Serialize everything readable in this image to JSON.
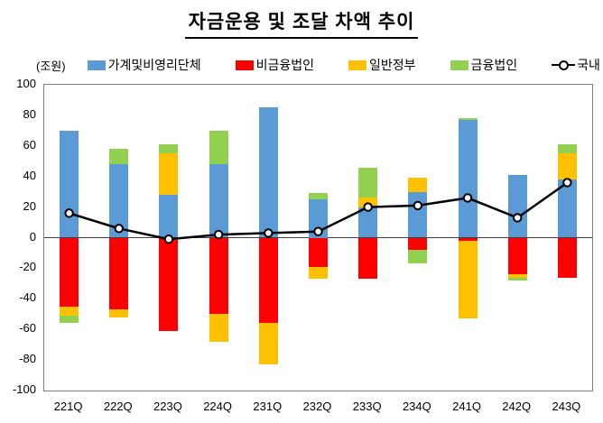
{
  "title": "자금운용 및 조달 차액 추이",
  "unit_label": "(조원)",
  "colors": {
    "blue": "#5B9BD5",
    "red": "#FF0000",
    "yellow": "#FFC000",
    "green": "#92D050",
    "line": "#000000",
    "marker_fill": "#FFFFFF",
    "plot_border": "#7F7F7F",
    "zero_line": "#404040"
  },
  "chart_data": {
    "type": "bar",
    "stacked": true,
    "title": "자금운용 및 조달 차액 추이",
    "unit": "(조원)",
    "categories": [
      "221Q",
      "222Q",
      "223Q",
      "224Q",
      "231Q",
      "232Q",
      "233Q",
      "234Q",
      "241Q",
      "242Q",
      "243Q"
    ],
    "series": [
      {
        "name": "가계및비영리단체",
        "color_key": "blue",
        "values": [
          70,
          48,
          28,
          48,
          85,
          25,
          20,
          30,
          77,
          41,
          38
        ]
      },
      {
        "name": "비금융법인",
        "color_key": "red",
        "values": [
          -45,
          -47,
          -61,
          -50,
          -56,
          -19,
          -27,
          -8,
          -2,
          -24,
          -26
        ]
      },
      {
        "name": "일반정부",
        "color_key": "yellow",
        "values": [
          -6,
          -5,
          27,
          -18,
          -27,
          -8,
          6,
          9,
          -51,
          -2,
          17
        ]
      },
      {
        "name": "금융법인",
        "color_key": "green",
        "values": [
          -5,
          10,
          6,
          22,
          0,
          4,
          20,
          -9,
          1,
          -2,
          6
        ]
      }
    ],
    "line_series": {
      "name": "국내",
      "marker": "open-circle",
      "values": [
        16,
        6,
        -1,
        2,
        3,
        4,
        20,
        21,
        26,
        13,
        36
      ]
    },
    "ylim": [
      -100,
      100
    ],
    "yticks": [
      100,
      80,
      60,
      40,
      20,
      0,
      -20,
      -40,
      -60,
      -80,
      -100
    ],
    "legend_position": "top",
    "grid": false
  }
}
